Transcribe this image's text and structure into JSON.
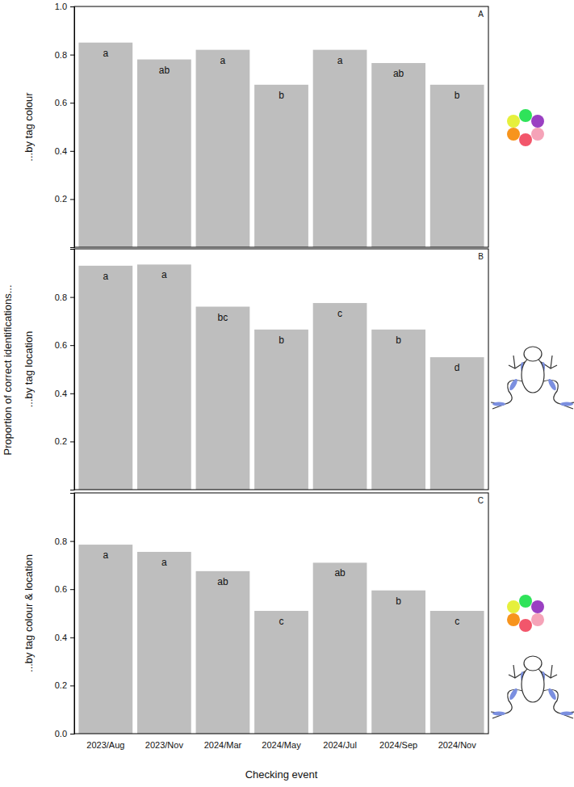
{
  "figure": {
    "ylabel": "Proportion of correct identifications..."
  },
  "chart_data": [
    {
      "type": "bar",
      "panel": "A",
      "ylabel": "...by tag colour",
      "categories": [
        "2023/Aug",
        "2023/Nov",
        "2024/Mar",
        "2024/May",
        "2024/Jul",
        "2024/Sep",
        "2024/Nov"
      ],
      "values": [
        0.85,
        0.78,
        0.82,
        0.675,
        0.82,
        0.765,
        0.675
      ],
      "annotations": [
        "a",
        "ab",
        "a",
        "b",
        "a",
        "ab",
        "b"
      ],
      "color": "#bebebe",
      "ylim": [
        0,
        1
      ],
      "yticks": [
        0.2,
        0.4,
        0.6,
        0.8,
        {
          "value": 1,
          "label": "1.0"
        }
      ],
      "tick_labels": "y"
    },
    {
      "type": "bar",
      "panel": "B",
      "ylabel": "...by tag location",
      "categories": [
        "2023/Aug",
        "2023/Nov",
        "2024/Mar",
        "2024/May",
        "2024/Jul",
        "2024/Sep",
        "2024/Nov"
      ],
      "values": [
        0.93,
        0.935,
        0.76,
        0.665,
        0.775,
        0.665,
        0.55
      ],
      "annotations": [
        "a",
        "a",
        "bc",
        "b",
        "c",
        "b",
        "d"
      ],
      "color": "#bebebe",
      "ylim": [
        0,
        1
      ],
      "yticks": [
        0.2,
        0.4,
        0.6,
        0.8
      ],
      "tick_labels": "y"
    },
    {
      "type": "bar",
      "panel": "C",
      "ylabel": "...by tag colour & location",
      "xlabel": "Checking event",
      "categories": [
        "2023/Aug",
        "2023/Nov",
        "2024/Mar",
        "2024/May",
        "2024/Jul",
        "2024/Sep",
        "2024/Nov"
      ],
      "values": [
        0.785,
        0.755,
        0.675,
        0.51,
        0.71,
        0.595,
        0.51
      ],
      "annotations": [
        "a",
        "a",
        "ab",
        "c",
        "ab",
        "b",
        "c"
      ],
      "color": "#bebebe",
      "ylim": [
        0,
        1
      ],
      "yticks": [
        {
          "value": 0,
          "label": "0.0"
        },
        0.2,
        0.4,
        0.6,
        0.8
      ]
    }
  ]
}
